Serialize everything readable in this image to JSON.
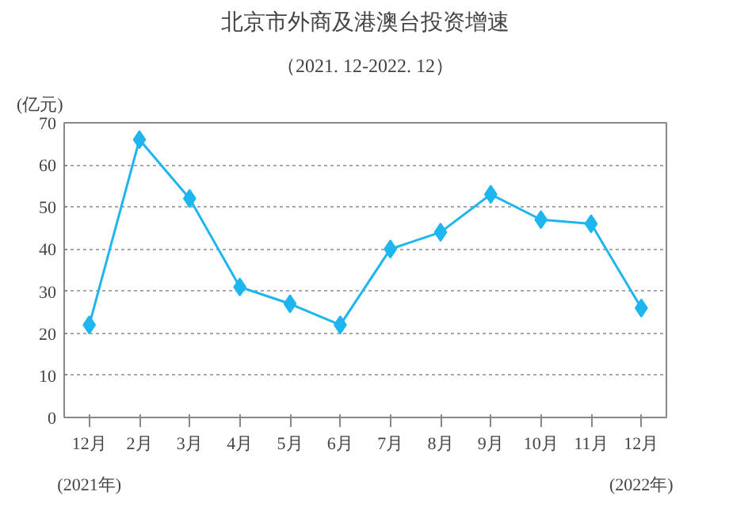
{
  "chart_data": {
    "type": "line",
    "title": "北京市外商及港澳台投资增速",
    "subtitle": "（2021. 12-2022. 12）",
    "ylabel": "(亿元)",
    "categories": [
      "12月",
      "2月",
      "3月",
      "4月",
      "5月",
      "6月",
      "7月",
      "8月",
      "9月",
      "10月",
      "11月",
      "12月"
    ],
    "series": [
      {
        "color": "#1fb5ee",
        "values": [
          22,
          66,
          52,
          31,
          27,
          22,
          40,
          44,
          53,
          47,
          46,
          26
        ]
      }
    ],
    "ylim": [
      0,
      70
    ],
    "yticks": [
      0,
      10,
      20,
      30,
      40,
      50,
      60,
      70
    ],
    "grid": "y",
    "marker": "diamond",
    "line_style": "solid",
    "annotations": [
      "(2021年)",
      "(2022年)"
    ]
  }
}
